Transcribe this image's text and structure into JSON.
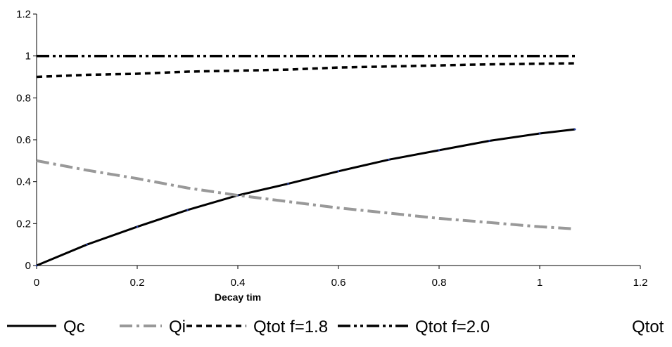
{
  "chart_data": {
    "type": "line",
    "title": "",
    "xlabel": "Decay  tim",
    "ylabel": "",
    "xlim": [
      0,
      1.2
    ],
    "ylim": [
      0,
      1.2
    ],
    "x_ticks": [
      "0",
      "0.2",
      "0.4",
      "0.6",
      "0.8",
      "1",
      "1.2"
    ],
    "y_ticks": [
      "0",
      "0.2",
      "0.4",
      "0.6",
      "0.8",
      "1",
      "1.2"
    ],
    "grid": false,
    "legend_position": "bottom",
    "series": [
      {
        "name": "Qc",
        "color": "#000000",
        "style": "solid",
        "x": [
          0,
          0.1,
          0.2,
          0.3,
          0.4,
          0.5,
          0.6,
          0.7,
          0.8,
          0.9,
          1.0,
          1.07
        ],
        "y": [
          0,
          0.1,
          0.185,
          0.265,
          0.335,
          0.39,
          0.45,
          0.505,
          0.55,
          0.595,
          0.63,
          0.65
        ]
      },
      {
        "name": "Qi",
        "color": "#999999",
        "style": "dashdot",
        "x": [
          0,
          0.1,
          0.2,
          0.3,
          0.4,
          0.5,
          0.6,
          0.7,
          0.8,
          0.9,
          1.0,
          1.07
        ],
        "y": [
          0.5,
          0.455,
          0.415,
          0.37,
          0.335,
          0.305,
          0.275,
          0.25,
          0.225,
          0.205,
          0.185,
          0.175
        ]
      },
      {
        "name": "Qtot f=1.8",
        "color": "#000000",
        "style": "dash",
        "x": [
          0,
          0.1,
          0.2,
          0.3,
          0.4,
          0.5,
          0.6,
          0.7,
          0.8,
          0.9,
          1.0,
          1.07
        ],
        "y": [
          0.9,
          0.91,
          0.915,
          0.925,
          0.93,
          0.935,
          0.945,
          0.95,
          0.955,
          0.96,
          0.963,
          0.965
        ]
      },
      {
        "name": "Qtot f=2.0",
        "color": "#000000",
        "style": "dashdotdot",
        "x": [
          0,
          0.1,
          0.2,
          0.3,
          0.4,
          0.5,
          0.6,
          0.7,
          0.8,
          0.9,
          1.0,
          1.07
        ],
        "y": [
          1.0,
          1.0,
          1.0,
          1.0,
          1.0,
          1.0,
          1.0,
          1.0,
          1.0,
          1.0,
          1.0,
          1.0
        ]
      }
    ],
    "legend_overflow_text": "Qtot"
  }
}
